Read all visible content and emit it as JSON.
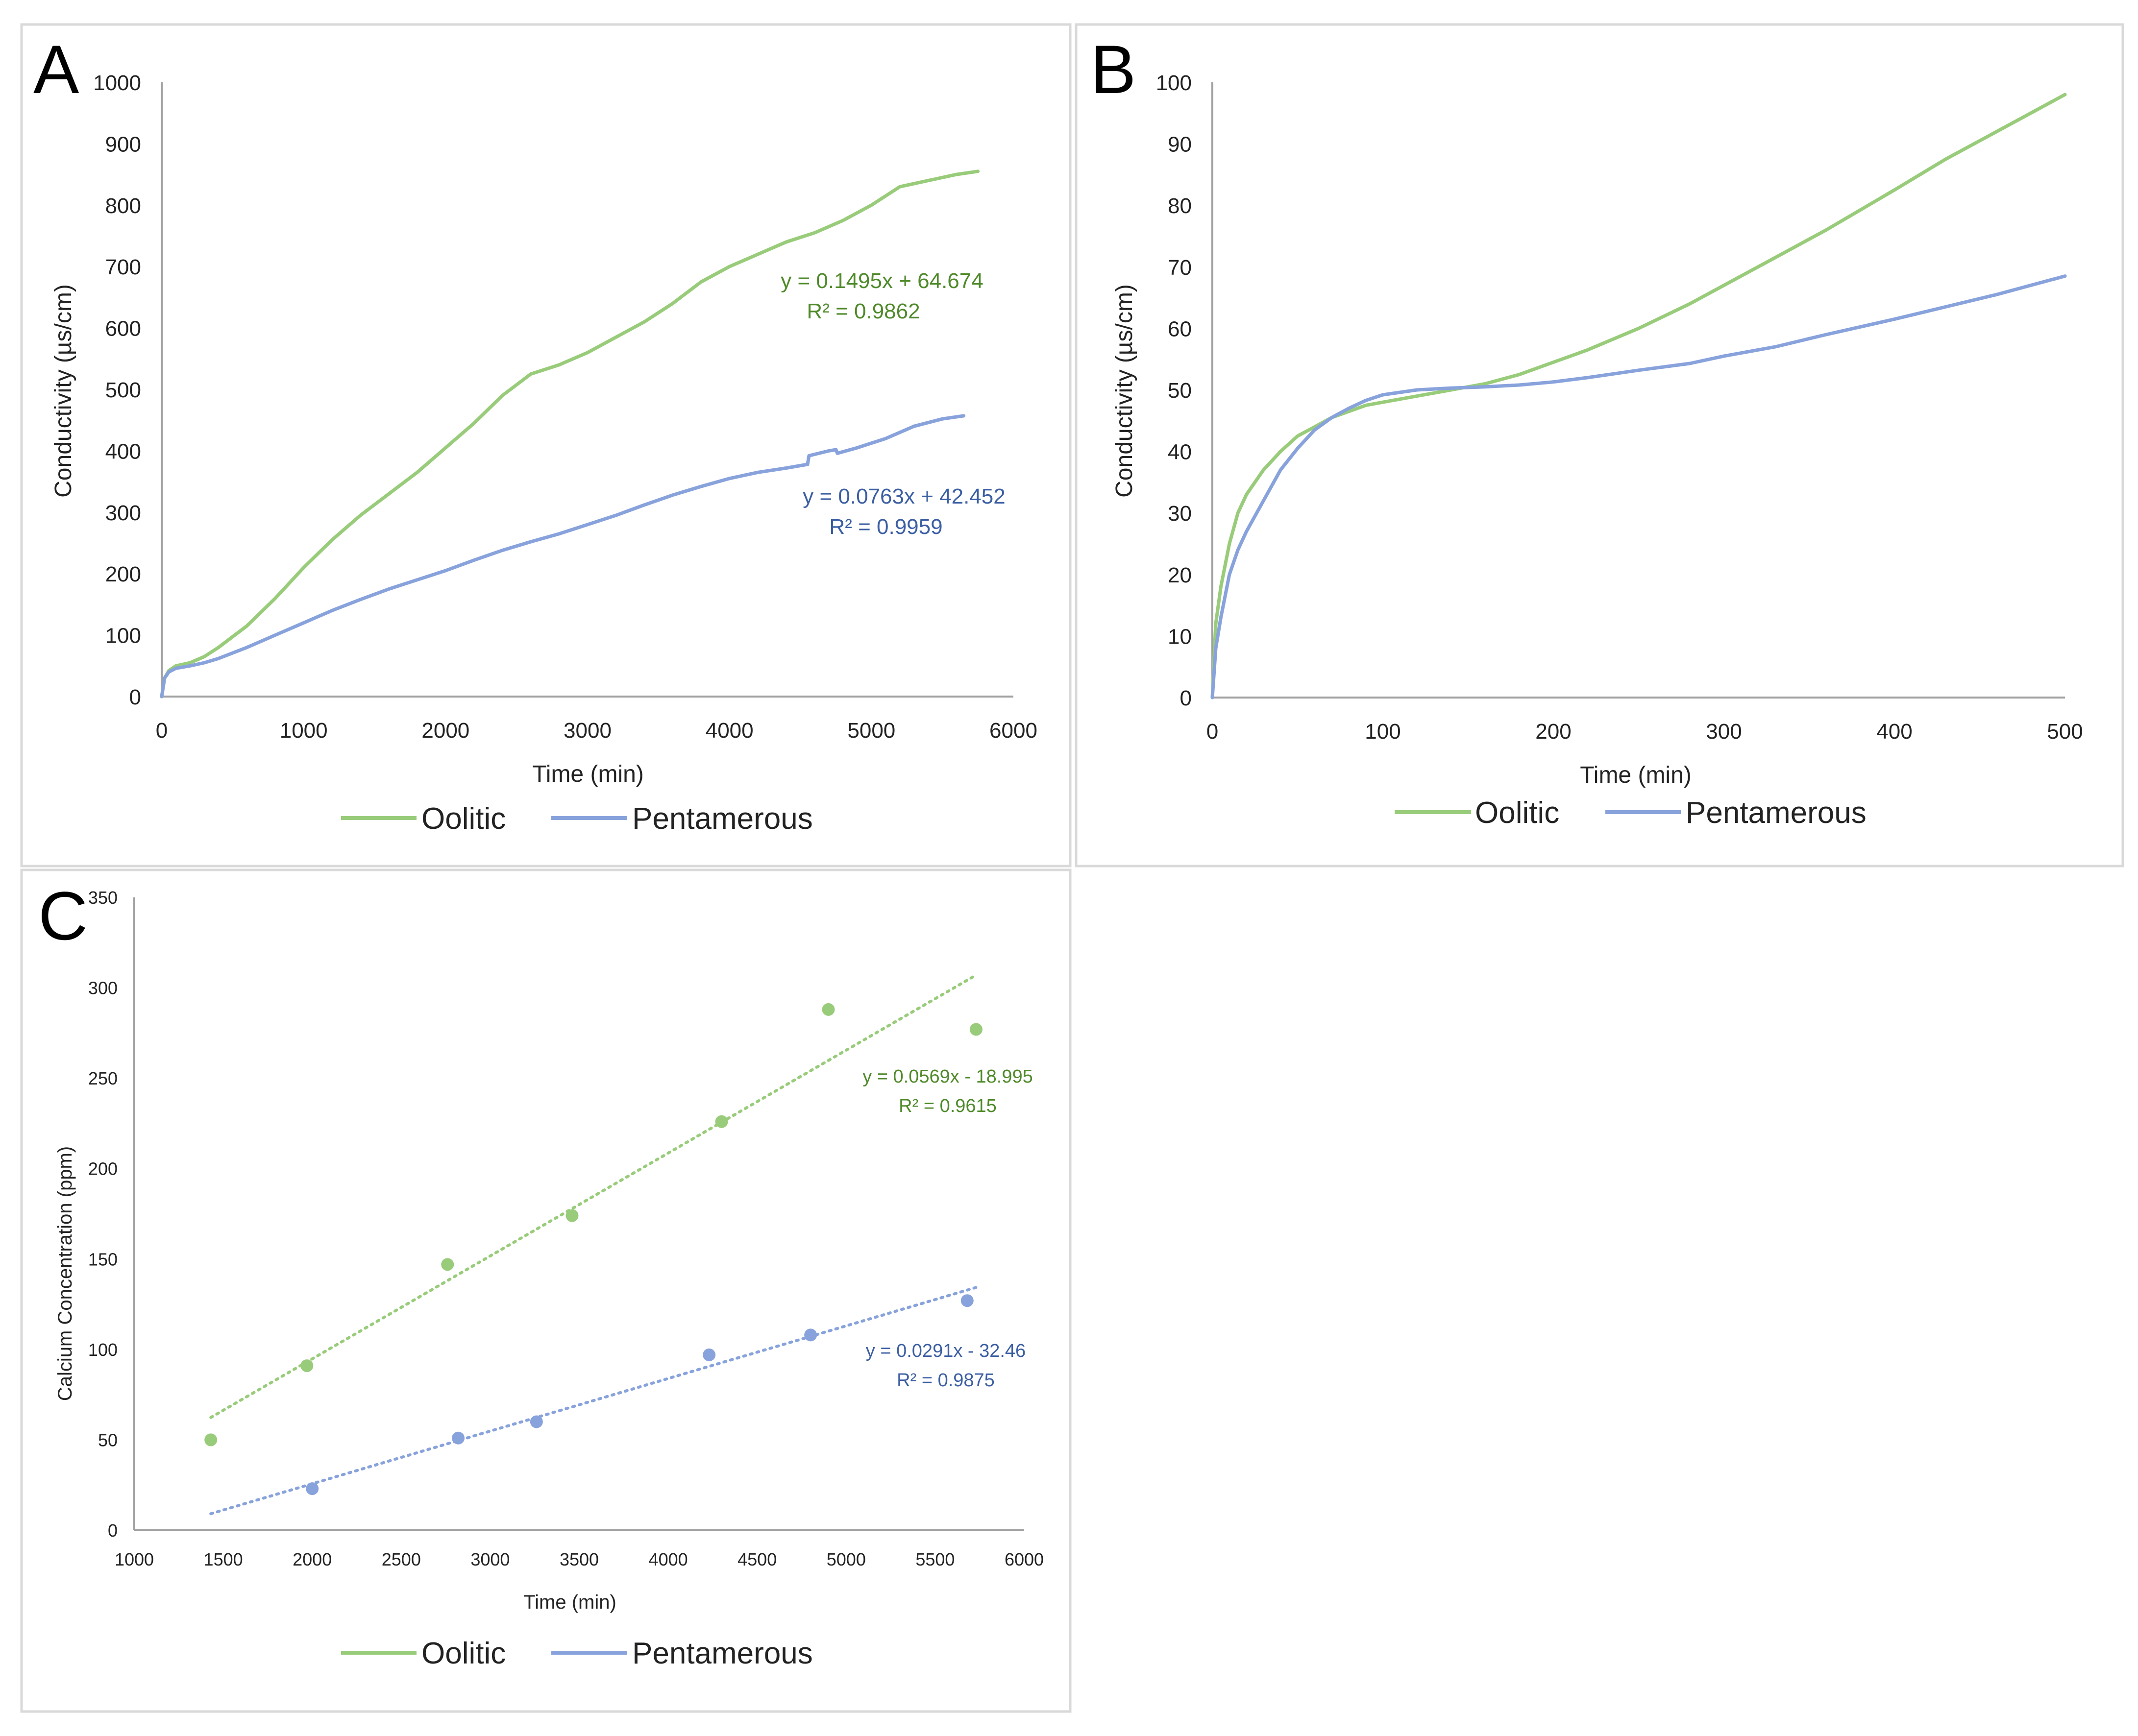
{
  "colors": {
    "oolitic": "#99cc7a",
    "pentamerous": "#88a2dc",
    "oolitic_label": "#4f8a2a",
    "pentamerous_label": "#3c5fa3",
    "axis": "#a0a0a0",
    "frame": "#d9d9d9"
  },
  "chart_data": [
    {
      "panel": "A",
      "type": "line",
      "xlabel": "Time (min)",
      "ylabel": "Conductivity (µs/cm)",
      "xlim": [
        0,
        6000
      ],
      "ylim": [
        0,
        1000
      ],
      "xticks": [
        0,
        1000,
        2000,
        3000,
        4000,
        5000,
        6000
      ],
      "yticks": [
        0,
        100,
        200,
        300,
        400,
        500,
        600,
        700,
        800,
        900,
        1000
      ],
      "grid": false,
      "legend": "bottom",
      "series": [
        {
          "name": "Oolitic",
          "color": "oolitic",
          "x": [
            0,
            20,
            50,
            100,
            200,
            300,
            400,
            600,
            800,
            1000,
            1200,
            1400,
            1600,
            1800,
            2000,
            2200,
            2400,
            2600,
            2800,
            3000,
            3200,
            3400,
            3600,
            3800,
            4000,
            4200,
            4400,
            4600,
            4800,
            5000,
            5200,
            5400,
            5600,
            5750
          ],
          "y": [
            0,
            30,
            42,
            50,
            55,
            65,
            80,
            115,
            160,
            210,
            255,
            295,
            330,
            365,
            405,
            445,
            490,
            525,
            540,
            560,
            585,
            610,
            640,
            675,
            700,
            720,
            740,
            755,
            775,
            800,
            830,
            840,
            850,
            855
          ],
          "equation": "y = 0.1495x + 64.674",
          "r2": "R² = 0.9862"
        },
        {
          "name": "Pentamerous",
          "color": "pentamerous",
          "x": [
            0,
            20,
            50,
            100,
            200,
            300,
            400,
            600,
            800,
            1000,
            1200,
            1400,
            1600,
            1800,
            2000,
            2200,
            2400,
            2600,
            2800,
            3000,
            3200,
            3400,
            3600,
            3800,
            4000,
            4200,
            4400,
            4550,
            4560,
            4700,
            4750,
            4760,
            4900,
            5100,
            5300,
            5500,
            5650
          ],
          "y": [
            0,
            30,
            40,
            46,
            50,
            55,
            62,
            80,
            100,
            120,
            140,
            158,
            175,
            190,
            205,
            222,
            238,
            252,
            265,
            280,
            295,
            312,
            328,
            342,
            355,
            365,
            372,
            378,
            392,
            400,
            402,
            396,
            405,
            420,
            440,
            452,
            457
          ]
        }
      ]
    },
    {
      "panel": "B",
      "type": "line",
      "xlabel": "Time (min)",
      "ylabel": "Conductivity (µs/cm)",
      "xlim": [
        0,
        500
      ],
      "ylim": [
        0,
        100
      ],
      "xticks": [
        0,
        100,
        200,
        300,
        400,
        500
      ],
      "yticks": [
        0,
        10,
        20,
        30,
        40,
        50,
        60,
        70,
        80,
        90,
        100
      ],
      "grid": false,
      "legend": "bottom",
      "series": [
        {
          "name": "Oolitic",
          "color": "oolitic",
          "x": [
            0,
            2,
            5,
            10,
            15,
            20,
            30,
            40,
            50,
            60,
            70,
            80,
            90,
            100,
            120,
            140,
            150,
            160,
            180,
            200,
            220,
            250,
            280,
            300,
            330,
            360,
            400,
            430,
            460,
            500
          ],
          "y": [
            0,
            12,
            18,
            25,
            30,
            33,
            37,
            40,
            42.5,
            44,
            45.5,
            46.5,
            47.5,
            48,
            49,
            50,
            50.5,
            51,
            52.5,
            54.5,
            56.5,
            60,
            64,
            67,
            71.5,
            76,
            82.5,
            87.5,
            92,
            98
          ]
        },
        {
          "name": "Pentamerous",
          "color": "pentamerous",
          "x": [
            0,
            2,
            5,
            10,
            15,
            20,
            30,
            40,
            50,
            60,
            70,
            80,
            90,
            100,
            120,
            140,
            160,
            180,
            200,
            220,
            250,
            280,
            300,
            330,
            360,
            400,
            430,
            460,
            500
          ],
          "y": [
            0,
            8,
            13,
            20,
            24,
            27,
            32,
            37,
            40.5,
            43.5,
            45.5,
            47,
            48.3,
            49.2,
            50,
            50.3,
            50.5,
            50.8,
            51.3,
            52,
            53.2,
            54.3,
            55.5,
            57,
            59,
            61.5,
            63.5,
            65.5,
            68.5
          ]
        }
      ]
    },
    {
      "panel": "C",
      "type": "scatter",
      "xlabel": "Time (min)",
      "ylabel": "Calcium Concentration (ppm)",
      "xlim": [
        1000,
        6000
      ],
      "ylim": [
        0,
        350
      ],
      "xticks": [
        1000,
        1500,
        2000,
        2500,
        3000,
        3500,
        4000,
        4500,
        5000,
        5500,
        6000
      ],
      "yticks": [
        0,
        50,
        100,
        150,
        200,
        250,
        300,
        350
      ],
      "grid": false,
      "legend": "bottom",
      "series": [
        {
          "name": "Oolitic",
          "color": "oolitic",
          "x": [
            1430,
            1970,
            2760,
            3460,
            4300,
            4900,
            5730
          ],
          "y": [
            50,
            91,
            147,
            174,
            226,
            288,
            277
          ],
          "trendline": {
            "slope": 0.0569,
            "intercept": -18.995,
            "x_range": [
              1430,
              5730
            ]
          },
          "equation": "y = 0.0569x - 18.995",
          "r2": "R² = 0.9615"
        },
        {
          "name": "Pentamerous",
          "color": "pentamerous",
          "x": [
            2000,
            2820,
            3260,
            4230,
            4800,
            5680
          ],
          "y": [
            23,
            51,
            60,
            97,
            108,
            127
          ],
          "trendline": {
            "slope": 0.0291,
            "intercept": -32.46,
            "x_range": [
              1430,
              5730
            ]
          },
          "equation": "y = 0.0291x - 32.46",
          "r2": "R² = 0.9875"
        }
      ]
    }
  ]
}
